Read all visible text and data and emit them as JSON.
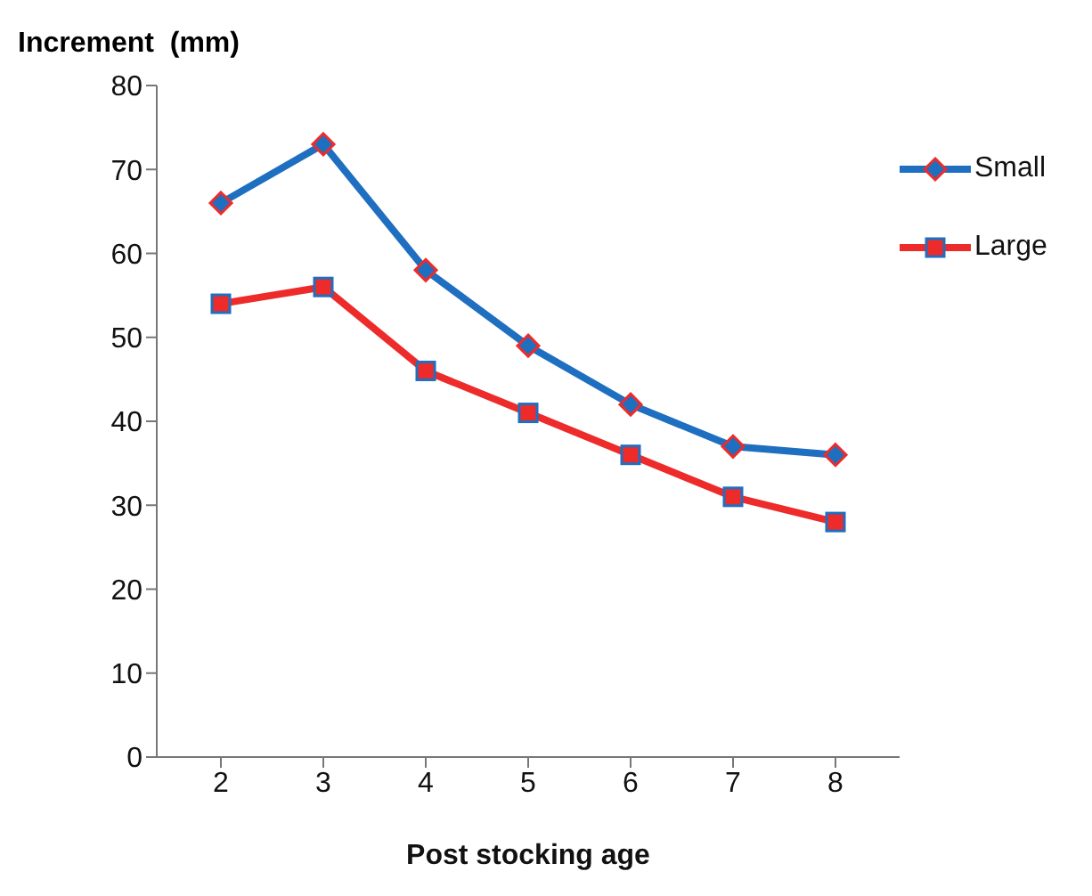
{
  "chart_data": {
    "type": "line",
    "xlabel": "Post stocking age",
    "ylabel": "Increment  (mm)",
    "categories": [
      "2",
      "3",
      "4",
      "5",
      "6",
      "7",
      "8"
    ],
    "series": [
      {
        "name": "Small",
        "color": "#1f6fc0",
        "marker": "diamond",
        "values": [
          66,
          73,
          58,
          49,
          42,
          37,
          36
        ]
      },
      {
        "name": "Large",
        "color": "#ee2b2b",
        "marker": "square",
        "values": [
          54,
          56,
          46,
          41,
          36,
          31,
          28
        ]
      }
    ],
    "ylim": [
      0,
      80
    ],
    "yticks": [
      0,
      10,
      20,
      30,
      40,
      50,
      60,
      70,
      80
    ],
    "grid": false,
    "legend": "top right"
  }
}
